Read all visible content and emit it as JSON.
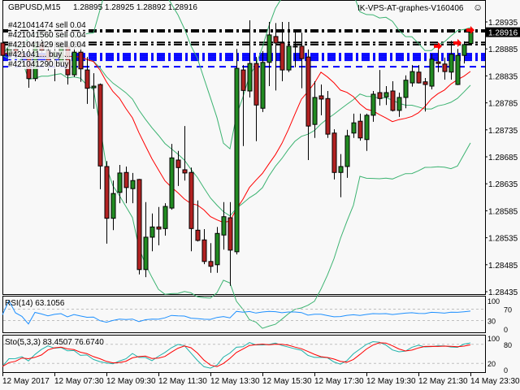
{
  "header": {
    "symbol_tf": "GBPUSD,M15",
    "ohlc_text": "1.28895 1.28925 1.28892 1.28916",
    "ea_label": "IK-VPS-AT-graphes-V160406",
    "ea_icon": "smiley-face-icon"
  },
  "orders": [
    {
      "label": "#421041474 sell 0.04",
      "price": 1.2892,
      "color": "#000000",
      "style": "dash-dot"
    },
    {
      "label": "#421041560 sell 0.04",
      "price": 1.28917,
      "color": "#000000",
      "style": "dash-dot"
    },
    {
      "label": "#421041429 sell 0.04",
      "price": 1.28897,
      "color": "#000000",
      "style": "dash-dot"
    },
    {
      "label": "",
      "price": 1.28893,
      "color": "#000000",
      "style": "dash-dot"
    },
    {
      "label": "#421041... buy ...",
      "price": 1.28876,
      "color": "#0000ff",
      "style": "dash-dot"
    },
    {
      "label": "",
      "price": 1.28873,
      "color": "#0000ff",
      "style": "dash-dot"
    },
    {
      "label": "",
      "price": 1.2887,
      "color": "#0000ff",
      "style": "dash-dot"
    },
    {
      "label": "",
      "price": 1.28867,
      "color": "#0000ff",
      "style": "dash-dot"
    },
    {
      "label": "",
      "price": 1.28864,
      "color": "#0000ff",
      "style": "dash-dot"
    },
    {
      "label": "#421041290 buy",
      "price": 1.28852,
      "color": "#0000ff",
      "style": "dash"
    }
  ],
  "chart_data": {
    "type": "candlestick",
    "title": "GBPUSD,M15",
    "ylim": [
      1.28425,
      1.2895
    ],
    "y_ticks": [
      "1.28935",
      "1.28885",
      "1.28835",
      "1.28785",
      "1.28735",
      "1.28685",
      "1.28635",
      "1.28585",
      "1.28535",
      "1.28485",
      "1.28435"
    ],
    "current_price": "1.28916",
    "x_labels": [
      "12 May 2017",
      "12 May 07:30",
      "12 May 09:30",
      "12 May 11:30",
      "12 May 13:30",
      "12 May 15:30",
      "12 May 17:30",
      "12 May 19:30",
      "12 May 21:30",
      "14 May 23:30"
    ],
    "x_label_every": 8,
    "colors": {
      "bull": "#228b22",
      "bear": "#b22222",
      "outline": "#000000",
      "bands": "#3cb371",
      "ma": "#ff0000",
      "rsi": "#1e90ff",
      "sto_main": "#20b2aa",
      "sto_signal": "#ff0000"
    },
    "grid": false,
    "candles": [
      [
        1.28896,
        1.289,
        1.2887,
        1.28873
      ],
      [
        1.28873,
        1.28893,
        1.28863,
        1.28885
      ],
      [
        1.28885,
        1.28891,
        1.28867,
        1.28876
      ],
      [
        1.28876,
        1.28888,
        1.28858,
        1.2887
      ],
      [
        1.2887,
        1.28885,
        1.28813,
        1.2883
      ],
      [
        1.2883,
        1.289,
        1.28825,
        1.28896
      ],
      [
        1.28896,
        1.28903,
        1.28878,
        1.28882
      ],
      [
        1.28882,
        1.2889,
        1.28845,
        1.28861
      ],
      [
        1.28867,
        1.28893,
        1.28825,
        1.28879
      ],
      [
        1.2886,
        1.28897,
        1.28852,
        1.2889
      ],
      [
        1.2889,
        1.28897,
        1.28819,
        1.28837
      ],
      [
        1.28837,
        1.2889,
        1.28833,
        1.28879
      ],
      [
        1.28879,
        1.2889,
        1.28824,
        1.28848
      ],
      [
        1.28846,
        1.2887,
        1.28783,
        1.28812
      ],
      [
        1.28813,
        1.2884,
        1.28774,
        1.28816
      ],
      [
        1.28819,
        1.28821,
        1.28625,
        1.28668
      ],
      [
        1.28667,
        1.28677,
        1.28524,
        1.28571
      ],
      [
        1.28571,
        1.28641,
        1.28549,
        1.28617
      ],
      [
        1.28619,
        1.2867,
        1.28599,
        1.28655
      ],
      [
        1.28656,
        1.28667,
        1.28599,
        1.28628
      ],
      [
        1.28626,
        1.28655,
        1.28599,
        1.28641
      ],
      [
        1.28643,
        1.28644,
        1.28467,
        1.28476
      ],
      [
        1.28476,
        1.28601,
        1.28462,
        1.28536
      ],
      [
        1.28536,
        1.2858,
        1.2851,
        1.28555
      ],
      [
        1.28555,
        1.28592,
        1.28521,
        1.28551
      ],
      [
        1.28552,
        1.28599,
        1.28539,
        1.28593
      ],
      [
        1.2859,
        1.28709,
        1.28587,
        1.28683
      ],
      [
        1.28679,
        1.28696,
        1.28631,
        1.28665
      ],
      [
        1.28661,
        1.28742,
        1.28641,
        1.28655
      ],
      [
        1.28656,
        1.28665,
        1.2851,
        1.28552
      ],
      [
        1.28549,
        1.28604,
        1.28528,
        1.2853
      ],
      [
        1.28531,
        1.28551,
        1.28486,
        1.28491
      ],
      [
        1.28491,
        1.28525,
        1.2847,
        1.28482
      ],
      [
        1.28485,
        1.28555,
        1.2847,
        1.28543
      ],
      [
        1.2854,
        1.28601,
        1.28513,
        1.28574
      ],
      [
        1.28572,
        1.28601,
        1.28446,
        1.28512
      ],
      [
        1.28509,
        1.28885,
        1.28504,
        1.28849
      ],
      [
        1.28846,
        1.28855,
        1.28705,
        1.28808
      ],
      [
        1.28807,
        1.28938,
        1.28795,
        1.28858
      ],
      [
        1.28858,
        1.2887,
        1.28714,
        1.28781
      ],
      [
        1.28775,
        1.28881,
        1.28768,
        1.2886
      ],
      [
        1.2886,
        1.28935,
        1.28816,
        1.28911
      ],
      [
        1.28908,
        1.28933,
        1.28808,
        1.28896
      ],
      [
        1.28896,
        1.28935,
        1.28825,
        1.28846
      ],
      [
        1.28846,
        1.28935,
        1.28842,
        1.2889
      ],
      [
        1.2889,
        1.28918,
        1.28851,
        1.2889
      ],
      [
        1.2889,
        1.28915,
        1.28812,
        1.28867
      ],
      [
        1.2887,
        1.28884,
        1.28679,
        1.28742
      ],
      [
        1.28745,
        1.28825,
        1.2872,
        1.28795
      ],
      [
        1.28798,
        1.28819,
        1.28762,
        1.28792
      ],
      [
        1.28793,
        1.28807,
        1.2872,
        1.28727
      ],
      [
        1.28729,
        1.28736,
        1.28643,
        1.28656
      ],
      [
        1.28656,
        1.2869,
        1.2861,
        1.28667
      ],
      [
        1.28667,
        1.28735,
        1.28646,
        1.28724
      ],
      [
        1.28729,
        1.28765,
        1.2872,
        1.28748
      ],
      [
        1.28751,
        1.28765,
        1.28715,
        1.2872
      ],
      [
        1.28717,
        1.28765,
        1.28696,
        1.28762
      ],
      [
        1.28762,
        1.28807,
        1.2875,
        1.28801
      ],
      [
        1.28804,
        1.28846,
        1.2878,
        1.28793
      ],
      [
        1.28796,
        1.28816,
        1.28781,
        1.28804
      ],
      [
        1.28807,
        1.28825,
        1.28769,
        1.28771
      ],
      [
        1.28771,
        1.28804,
        1.28759,
        1.28795
      ],
      [
        1.28795,
        1.28836,
        1.28775,
        1.28827
      ],
      [
        1.28822,
        1.28855,
        1.28815,
        1.28843
      ],
      [
        1.28842,
        1.28855,
        1.28821,
        1.28822
      ],
      [
        1.28824,
        1.28831,
        1.28769,
        1.28819
      ],
      [
        1.28816,
        1.28876,
        1.2881,
        1.28866
      ],
      [
        1.28861,
        1.28891,
        1.28842,
        1.28858
      ],
      [
        1.28857,
        1.28869,
        1.28828,
        1.28843
      ],
      [
        1.28842,
        1.289,
        1.28828,
        1.28875
      ],
      [
        1.28819,
        1.28885,
        1.28818,
        1.28873
      ],
      [
        1.28873,
        1.28899,
        1.28858,
        1.28893
      ],
      [
        1.28895,
        1.28925,
        1.28892,
        1.28916
      ]
    ],
    "candle_format": [
      "open",
      "high",
      "low",
      "close"
    ],
    "trade_arrows": [
      {
        "bar": 67,
        "price": 1.2889,
        "color": "#ff0000"
      },
      {
        "bar": 70,
        "price": 1.28896,
        "color": "#ff0000"
      },
      {
        "bar": 72,
        "price": 1.2892,
        "color": "#ff0000"
      }
    ],
    "indicators": {
      "bands": {
        "period": 20,
        "deviation": 2
      },
      "ma": {
        "period": 14
      },
      "rsi": {
        "label": "RSI(14) 63.1056",
        "levels": [
          70,
          30
        ],
        "ticks": [
          "100",
          "70",
          "30",
          "0"
        ]
      },
      "stochastic": {
        "label": "Sto(5,3,3) 83.4507 76.6740",
        "levels": [
          80,
          20
        ],
        "ticks": [
          "100",
          "80",
          "20",
          "0"
        ]
      }
    }
  }
}
